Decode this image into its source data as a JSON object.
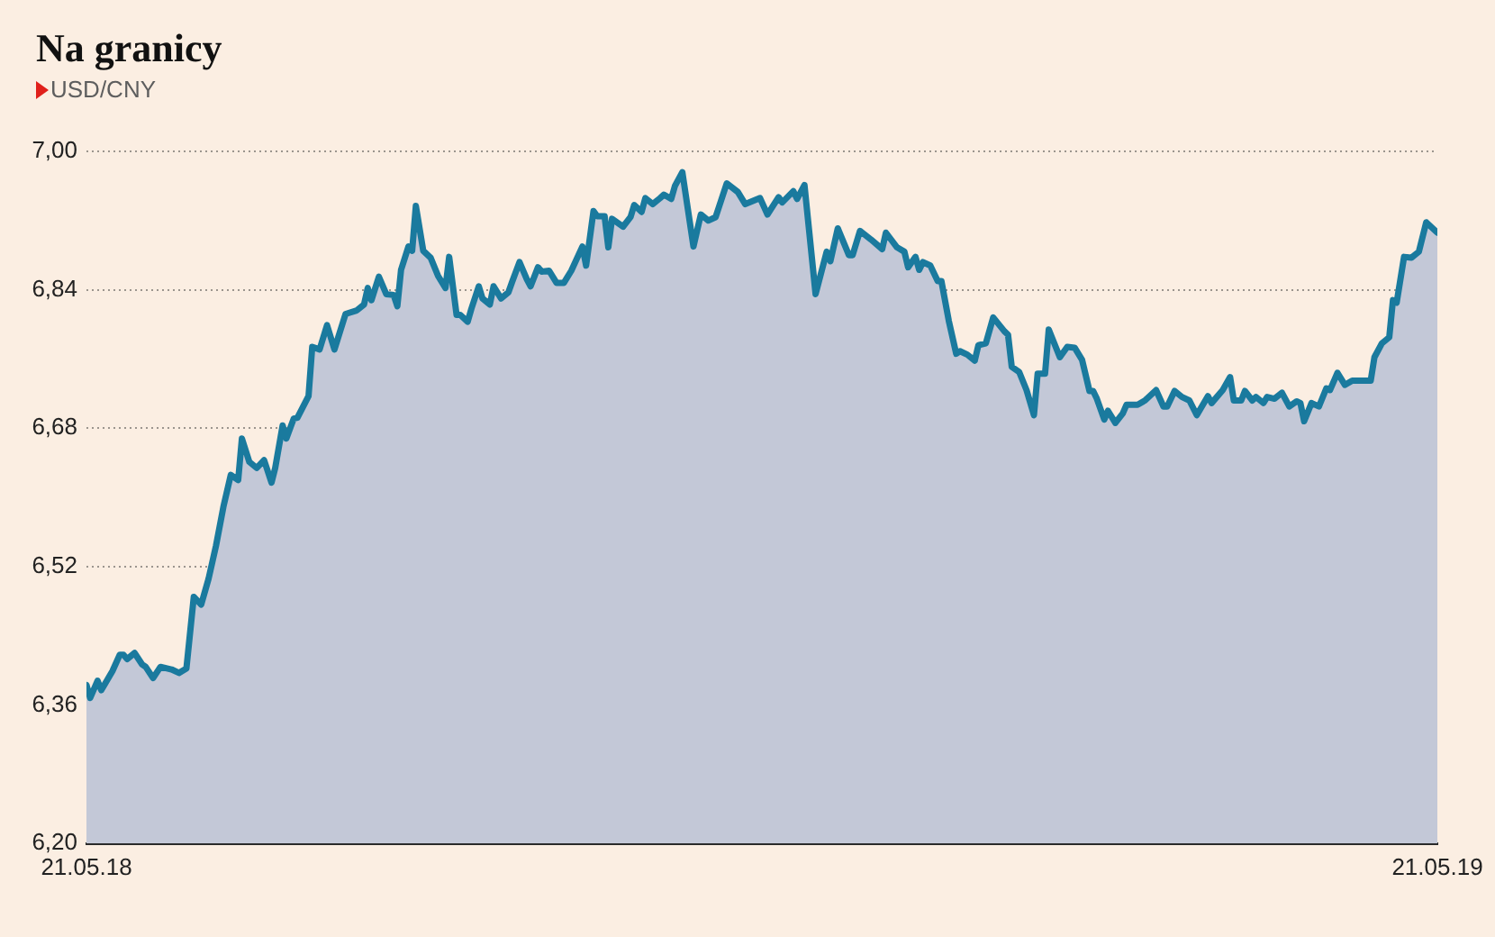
{
  "chart_data": {
    "type": "area",
    "title": "Na granicy",
    "subtitle": "USD/CNY",
    "x": [
      "2018-05-21",
      "2018-05-22",
      "2018-05-24",
      "2018-05-25",
      "2018-05-28",
      "2018-05-30",
      "2018-05-31",
      "2018-06-01",
      "2018-06-03",
      "2018-06-05",
      "2018-06-06",
      "2018-06-08",
      "2018-06-10",
      "2018-06-13",
      "2018-06-15",
      "2018-06-17",
      "2018-06-19",
      "2018-06-21",
      "2018-06-23",
      "2018-06-25",
      "2018-06-27",
      "2018-06-29",
      "2018-07-01",
      "2018-07-02",
      "2018-07-04",
      "2018-07-06",
      "2018-07-08",
      "2018-07-10",
      "2018-07-11",
      "2018-07-13",
      "2018-07-14",
      "2018-07-16",
      "2018-07-17",
      "2018-07-20",
      "2018-07-21",
      "2018-07-23",
      "2018-07-25",
      "2018-07-27",
      "2018-07-30",
      "2018-08-02",
      "2018-08-04",
      "2018-08-05",
      "2018-08-06",
      "2018-08-08",
      "2018-08-10",
      "2018-08-12",
      "2018-08-13",
      "2018-08-14",
      "2018-08-16",
      "2018-08-17",
      "2018-08-18",
      "2018-08-20",
      "2018-08-22",
      "2018-08-24",
      "2018-08-26",
      "2018-08-27",
      "2018-08-29",
      "2018-08-30",
      "2018-09-01",
      "2018-09-02",
      "2018-09-04",
      "2018-09-05",
      "2018-09-07",
      "2018-09-08",
      "2018-09-10",
      "2018-09-12",
      "2018-09-13",
      "2018-09-15",
      "2018-09-17",
      "2018-09-18",
      "2018-09-20",
      "2018-09-21",
      "2018-09-23",
      "2018-09-25",
      "2018-09-27",
      "2018-09-29",
      "2018-10-02",
      "2018-10-03",
      "2018-10-05",
      "2018-10-06",
      "2018-10-08",
      "2018-10-09",
      "2018-10-10",
      "2018-10-13",
      "2018-10-15",
      "2018-10-16",
      "2018-10-18",
      "2018-10-19",
      "2018-10-21",
      "2018-10-23",
      "2018-10-24",
      "2018-10-26",
      "2018-10-27",
      "2018-10-29",
      "2018-11-01",
      "2018-11-03",
      "2018-11-05",
      "2018-11-07",
      "2018-11-10",
      "2018-11-13",
      "2018-11-15",
      "2018-11-19",
      "2018-11-21",
      "2018-11-24",
      "2018-11-25",
      "2018-11-28",
      "2018-11-29",
      "2018-12-01",
      "2018-12-04",
      "2018-12-07",
      "2018-12-08",
      "2018-12-10",
      "2018-12-13",
      "2018-12-14",
      "2018-12-16",
      "2018-12-19",
      "2018-12-22",
      "2018-12-23",
      "2018-12-26",
      "2018-12-28",
      "2018-12-29",
      "2018-12-31",
      "2019-01-01",
      "2019-01-02",
      "2019-01-04",
      "2019-01-06",
      "2019-01-07",
      "2019-01-09",
      "2019-01-11",
      "2019-01-12",
      "2019-01-14",
      "2019-01-16",
      "2019-01-17",
      "2019-01-19",
      "2019-01-21",
      "2019-01-24",
      "2019-01-25",
      "2019-01-26",
      "2019-01-28",
      "2019-01-30",
      "2019-02-01",
      "2019-02-02",
      "2019-02-04",
      "2019-02-05",
      "2019-02-08",
      "2019-02-10",
      "2019-02-12",
      "2019-02-14",
      "2019-02-16",
      "2019-02-17",
      "2019-02-18",
      "2019-02-20",
      "2019-02-21",
      "2019-02-23",
      "2019-02-25",
      "2019-02-26",
      "2019-03-01",
      "2019-03-03",
      "2019-03-06",
      "2019-03-08",
      "2019-03-09",
      "2019-03-11",
      "2019-03-13",
      "2019-03-15",
      "2019-03-17",
      "2019-03-20",
      "2019-03-21",
      "2019-03-24",
      "2019-03-26",
      "2019-03-27",
      "2019-03-29",
      "2019-03-30",
      "2019-04-01",
      "2019-04-02",
      "2019-04-04",
      "2019-04-05",
      "2019-04-07",
      "2019-04-09",
      "2019-04-11",
      "2019-04-13",
      "2019-04-14",
      "2019-04-15",
      "2019-04-17",
      "2019-04-19",
      "2019-04-21",
      "2019-04-22",
      "2019-04-24",
      "2019-04-26",
      "2019-04-28",
      "2019-05-03",
      "2019-05-04",
      "2019-05-06",
      "2019-05-08",
      "2019-05-09",
      "2019-05-10",
      "2019-05-12",
      "2019-05-14",
      "2019-05-16",
      "2019-05-18",
      "2019-05-21"
    ],
    "values": [
      6.383,
      6.368,
      6.388,
      6.377,
      6.399,
      6.418,
      6.418,
      6.413,
      6.42,
      6.407,
      6.404,
      6.391,
      6.404,
      6.401,
      6.397,
      6.402,
      6.485,
      6.476,
      6.506,
      6.544,
      6.589,
      6.626,
      6.62,
      6.668,
      6.641,
      6.634,
      6.643,
      6.617,
      6.634,
      6.683,
      6.668,
      6.691,
      6.692,
      6.717,
      6.774,
      6.771,
      6.799,
      6.771,
      6.812,
      6.816,
      6.823,
      6.842,
      6.828,
      6.855,
      6.835,
      6.834,
      6.821,
      6.863,
      6.89,
      6.885,
      6.937,
      6.885,
      6.877,
      6.856,
      6.842,
      6.878,
      6.811,
      6.811,
      6.803,
      6.818,
      6.844,
      6.83,
      6.823,
      6.844,
      6.83,
      6.837,
      6.849,
      6.872,
      6.852,
      6.844,
      6.866,
      6.861,
      6.862,
      6.848,
      6.848,
      6.862,
      6.89,
      6.868,
      6.931,
      6.925,
      6.925,
      6.889,
      6.922,
      6.913,
      6.924,
      6.938,
      6.93,
      6.946,
      6.939,
      6.946,
      6.95,
      6.945,
      6.96,
      6.976,
      6.89,
      6.927,
      6.92,
      6.924,
      6.963,
      6.953,
      6.939,
      6.946,
      6.927,
      6.947,
      6.941,
      6.954,
      6.945,
      6.961,
      6.835,
      6.884,
      6.873,
      6.911,
      6.88,
      6.88,
      6.908,
      6.898,
      6.887,
      6.906,
      6.889,
      6.884,
      6.866,
      6.878,
      6.863,
      6.872,
      6.868,
      6.85,
      6.85,
      6.804,
      6.766,
      6.769,
      6.765,
      6.758,
      6.776,
      6.778,
      6.808,
      6.792,
      6.788,
      6.751,
      6.745,
      6.724,
      6.695,
      6.743,
      6.743,
      6.794,
      6.762,
      6.774,
      6.773,
      6.759,
      6.723,
      6.723,
      6.714,
      6.69,
      6.7,
      6.686,
      6.697,
      6.707,
      6.707,
      6.712,
      6.724,
      6.705,
      6.705,
      6.723,
      6.716,
      6.712,
      6.695,
      6.717,
      6.709,
      6.724,
      6.739,
      6.712,
      6.712,
      6.723,
      6.712,
      6.716,
      6.709,
      6.716,
      6.714,
      6.721,
      6.705,
      6.711,
      6.709,
      6.688,
      6.709,
      6.705,
      6.726,
      6.724,
      6.744,
      6.73,
      6.735,
      6.735,
      6.762,
      6.778,
      6.785,
      6.828,
      6.825,
      6.878,
      6.877,
      6.884,
      6.918,
      6.906
    ],
    "color": "#c3c8d7",
    "xlim": [
      "2018-05-21",
      "2019-05-21"
    ],
    "xticks": [
      {
        "value": "2018-05-21",
        "label": "21.05.18"
      },
      {
        "value": "2019-05-21",
        "label": "21.05.19"
      }
    ],
    "ylim": [
      6.2,
      7.0
    ],
    "yticks": [
      {
        "value": 6.2,
        "label": "6,20"
      },
      {
        "value": 6.36,
        "label": "6,36"
      },
      {
        "value": 6.52,
        "label": "6,52"
      },
      {
        "value": 6.68,
        "label": "6,68"
      },
      {
        "value": 6.84,
        "label": "6,84"
      },
      {
        "value": 7.0,
        "label": "7,00"
      }
    ],
    "grid": "y",
    "marker": "none"
  }
}
